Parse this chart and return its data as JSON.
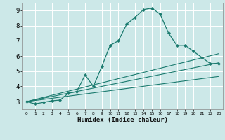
{
  "xlabel": "Humidex (Indice chaleur)",
  "xlim": [
    -0.5,
    23.5
  ],
  "ylim": [
    2.5,
    9.5
  ],
  "yticks": [
    3,
    4,
    5,
    6,
    7,
    8,
    9
  ],
  "xticks": [
    0,
    1,
    2,
    3,
    4,
    5,
    6,
    7,
    8,
    9,
    10,
    11,
    12,
    13,
    14,
    15,
    16,
    17,
    18,
    19,
    20,
    21,
    22,
    23
  ],
  "bg_color": "#cce8e8",
  "grid_color": "#ffffff",
  "line_color": "#1a7a6e",
  "main_line": {
    "x": [
      0,
      1,
      2,
      3,
      4,
      5,
      6,
      7,
      8,
      9,
      10,
      11,
      12,
      13,
      14,
      15,
      16,
      17,
      18,
      19,
      20,
      21,
      22,
      23
    ],
    "y": [
      3.0,
      2.85,
      2.95,
      3.05,
      3.1,
      3.55,
      3.65,
      4.75,
      4.0,
      5.3,
      6.7,
      7.0,
      8.1,
      8.55,
      9.05,
      9.15,
      8.75,
      7.5,
      6.7,
      6.7,
      6.3,
      5.9,
      5.5,
      5.5
    ]
  },
  "ref_lines": [
    {
      "x": [
        0,
        23
      ],
      "y": [
        3.0,
        5.55
      ]
    },
    {
      "x": [
        0,
        23
      ],
      "y": [
        3.0,
        4.65
      ]
    },
    {
      "x": [
        0,
        23
      ],
      "y": [
        3.0,
        6.15
      ]
    }
  ]
}
